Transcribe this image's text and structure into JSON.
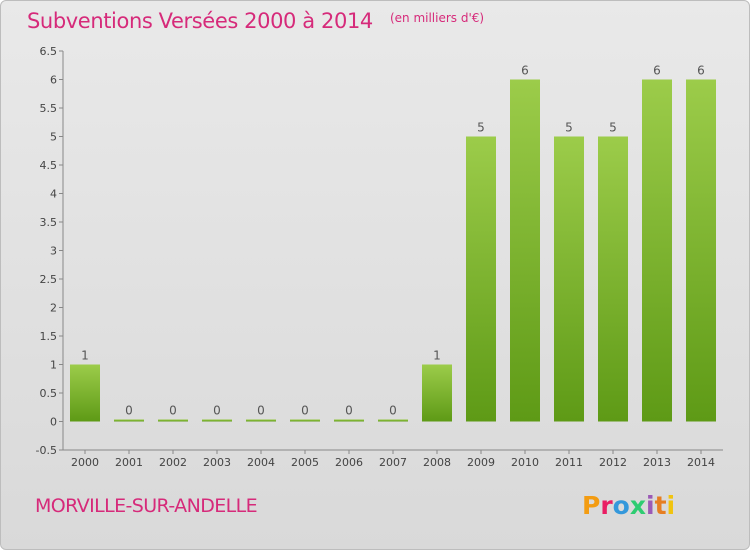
{
  "header": {
    "title": "Subventions Versées 2000 à 2014",
    "subtitle": "(en milliers d'€)"
  },
  "footer": {
    "commune": "MORVILLE-SUR-ANDELLE",
    "logo_text": "Proxiti",
    "logo_colors": [
      "#f39c12",
      "#e91e63",
      "#3498db",
      "#2ecc71",
      "#9b59b6",
      "#e67e22",
      "#f1c40f"
    ]
  },
  "chart_data": {
    "type": "bar",
    "categories": [
      "2000",
      "2001",
      "2002",
      "2003",
      "2004",
      "2005",
      "2006",
      "2007",
      "2008",
      "2009",
      "2010",
      "2011",
      "2012",
      "2013",
      "2014"
    ],
    "values": [
      1,
      0,
      0,
      0,
      0,
      0,
      0,
      0,
      1,
      5,
      6,
      5,
      5,
      6,
      6
    ],
    "value_labels": [
      "1",
      "0",
      "0",
      "0",
      "0",
      "0",
      "0",
      "0",
      "1",
      "5",
      "6",
      "5",
      "5",
      "6",
      "6"
    ],
    "y_ticks": [
      "-0.5",
      "0",
      "0.5",
      "1",
      "1.5",
      "2",
      "2.5",
      "3",
      "3.5",
      "4",
      "4.5",
      "5",
      "5.5",
      "6",
      "6.5"
    ],
    "ylim": [
      -0.5,
      6.5
    ],
    "grid": false,
    "bar_color_top": "#9ccc4a",
    "bar_color_bottom": "#5e9a16"
  }
}
